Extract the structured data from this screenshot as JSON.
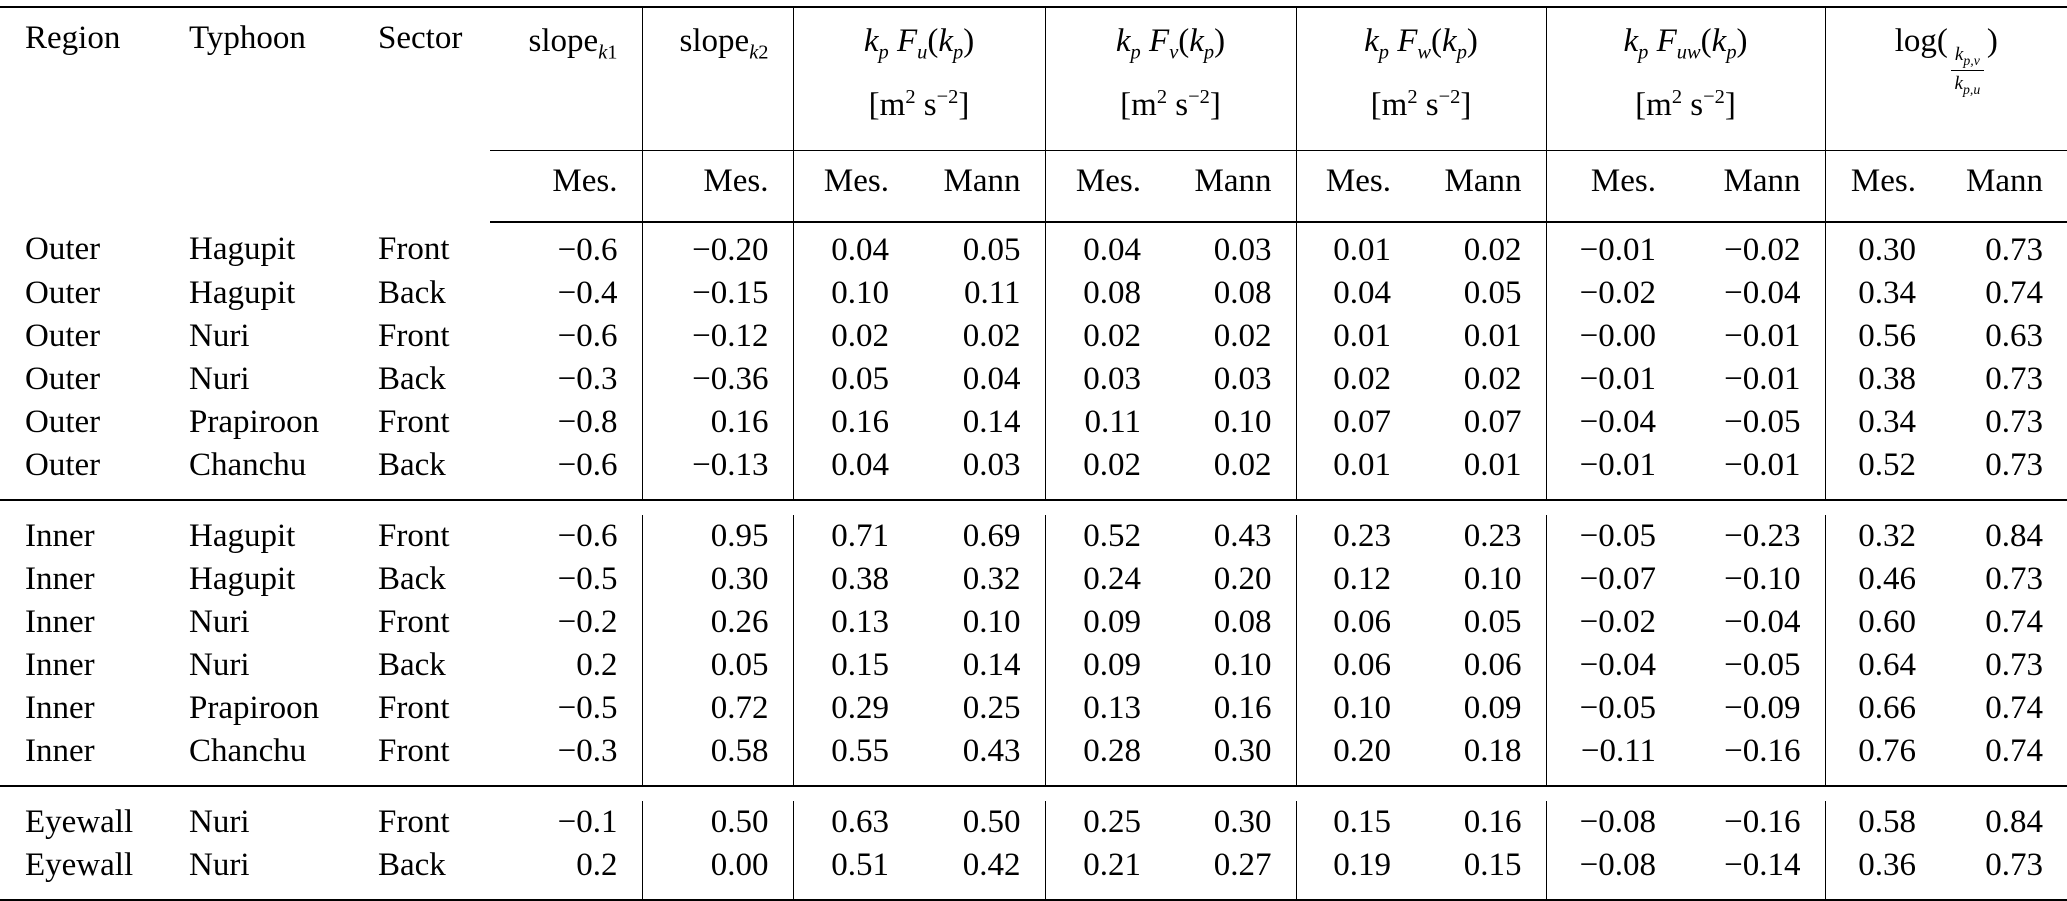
{
  "table": {
    "col_headers": {
      "region": "Region",
      "typhoon": "Typhoon",
      "sector": "Sector",
      "slope_k1": [
        {
          "t": "slope"
        },
        {
          "t": "k",
          "k": "isub"
        },
        {
          "t": "1",
          "k": "sub"
        }
      ],
      "slope_k2": [
        {
          "t": "slope"
        },
        {
          "t": "k",
          "k": "isub"
        },
        {
          "t": "2",
          "k": "sub"
        }
      ],
      "fu": [
        {
          "t": "k",
          "k": "i"
        },
        {
          "t": "p",
          "k": "isub"
        },
        {
          "t": " F",
          "k": "i"
        },
        {
          "t": "u",
          "k": "isub"
        },
        {
          "t": "("
        },
        {
          "t": "k",
          "k": "i"
        },
        {
          "t": "p",
          "k": "isub"
        },
        {
          "t": ")"
        }
      ],
      "fv": [
        {
          "t": "k",
          "k": "i"
        },
        {
          "t": "p",
          "k": "isub"
        },
        {
          "t": " F",
          "k": "i"
        },
        {
          "t": "v",
          "k": "isub"
        },
        {
          "t": "("
        },
        {
          "t": "k",
          "k": "i"
        },
        {
          "t": "p",
          "k": "isub"
        },
        {
          "t": ")"
        }
      ],
      "fw": [
        {
          "t": "k",
          "k": "i"
        },
        {
          "t": "p",
          "k": "isub"
        },
        {
          "t": " F",
          "k": "i"
        },
        {
          "t": "w",
          "k": "isub"
        },
        {
          "t": "("
        },
        {
          "t": "k",
          "k": "i"
        },
        {
          "t": "p",
          "k": "isub"
        },
        {
          "t": ")"
        }
      ],
      "fuw": [
        {
          "t": "k",
          "k": "i"
        },
        {
          "t": "p",
          "k": "isub"
        },
        {
          "t": " F",
          "k": "i"
        },
        {
          "t": "uw",
          "k": "isub"
        },
        {
          "t": "("
        },
        {
          "t": "k",
          "k": "i"
        },
        {
          "t": "p",
          "k": "isub"
        },
        {
          "t": ")"
        }
      ],
      "units": [
        {
          "t": "[m"
        },
        {
          "t": "2",
          "k": "sup"
        },
        {
          "t": " s"
        },
        {
          "t": "−2",
          "k": "sup"
        },
        {
          "t": "]"
        }
      ],
      "log": {
        "fn": "log",
        "open": "(",
        "num_base": "k",
        "num_sub": "p,v",
        "den_base": "k",
        "den_sub": "p,u",
        "close": ")"
      },
      "mes": "Mes.",
      "mann": "Mann"
    },
    "rows": [
      {
        "cells": [
          "Outer",
          "Hagupit",
          "Front",
          "−0.6",
          "−0.20",
          "0.04",
          "0.05",
          "0.04",
          "0.03",
          "0.01",
          "0.02",
          "−0.01",
          "−0.02",
          "0.30",
          "0.73"
        ]
      },
      {
        "cells": [
          "Outer",
          "Hagupit",
          "Back",
          "−0.4",
          "−0.15",
          "0.10",
          "0.11",
          "0.08",
          "0.08",
          "0.04",
          "0.05",
          "−0.02",
          "−0.04",
          "0.34",
          "0.74"
        ]
      },
      {
        "cells": [
          "Outer",
          "Nuri",
          "Front",
          "−0.6",
          "−0.12",
          "0.02",
          "0.02",
          "0.02",
          "0.02",
          "0.01",
          "0.01",
          "−0.00",
          "−0.01",
          "0.56",
          "0.63"
        ]
      },
      {
        "cells": [
          "Outer",
          "Nuri",
          "Back",
          "−0.3",
          "−0.36",
          "0.05",
          "0.04",
          "0.03",
          "0.03",
          "0.02",
          "0.02",
          "−0.01",
          "−0.01",
          "0.38",
          "0.73"
        ]
      },
      {
        "cells": [
          "Outer",
          "Prapiroon",
          "Front",
          "−0.8",
          "0.16",
          "0.16",
          "0.14",
          "0.11",
          "0.10",
          "0.07",
          "0.07",
          "−0.04",
          "−0.05",
          "0.34",
          "0.73"
        ]
      },
      {
        "cells": [
          "Outer",
          "Chanchu",
          "Back",
          "−0.6",
          "−0.13",
          "0.04",
          "0.03",
          "0.02",
          "0.02",
          "0.01",
          "0.01",
          "−0.01",
          "−0.01",
          "0.52",
          "0.73"
        ]
      },
      {
        "cells": [
          "Inner",
          "Hagupit",
          "Front",
          "−0.6",
          "0.95",
          "0.71",
          "0.69",
          "0.52",
          "0.43",
          "0.23",
          "0.23",
          "−0.05",
          "−0.23",
          "0.32",
          "0.84"
        ]
      },
      {
        "cells": [
          "Inner",
          "Hagupit",
          "Back",
          "−0.5",
          "0.30",
          "0.38",
          "0.32",
          "0.24",
          "0.20",
          "0.12",
          "0.10",
          "−0.07",
          "−0.10",
          "0.46",
          "0.73"
        ]
      },
      {
        "cells": [
          "Inner",
          "Nuri",
          "Front",
          "−0.2",
          "0.26",
          "0.13",
          "0.10",
          "0.09",
          "0.08",
          "0.06",
          "0.05",
          "−0.02",
          "−0.04",
          "0.60",
          "0.74"
        ]
      },
      {
        "cells": [
          "Inner",
          "Nuri",
          "Back",
          "0.2",
          "0.05",
          "0.15",
          "0.14",
          "0.09",
          "0.10",
          "0.06",
          "0.06",
          "−0.04",
          "−0.05",
          "0.64",
          "0.73"
        ]
      },
      {
        "cells": [
          "Inner",
          "Prapiroon",
          "Front",
          "−0.5",
          "0.72",
          "0.29",
          "0.25",
          "0.13",
          "0.16",
          "0.10",
          "0.09",
          "−0.05",
          "−0.09",
          "0.66",
          "0.74"
        ]
      },
      {
        "cells": [
          "Inner",
          "Chanchu",
          "Front",
          "−0.3",
          "0.58",
          "0.55",
          "0.43",
          "0.28",
          "0.30",
          "0.20",
          "0.18",
          "−0.11",
          "−0.16",
          "0.76",
          "0.74"
        ]
      },
      {
        "cells": [
          "Eyewall",
          "Nuri",
          "Front",
          "−0.1",
          "0.50",
          "0.63",
          "0.50",
          "0.25",
          "0.30",
          "0.15",
          "0.16",
          "−0.08",
          "−0.16",
          "0.58",
          "0.84"
        ]
      },
      {
        "cells": [
          "Eyewall",
          "Nuri",
          "Back",
          "0.2",
          "0.00",
          "0.51",
          "0.42",
          "0.21",
          "0.27",
          "0.19",
          "0.15",
          "−0.08",
          "−0.14",
          "0.36",
          "0.73"
        ]
      }
    ]
  }
}
